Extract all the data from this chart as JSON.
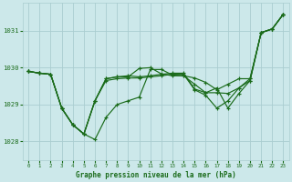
{
  "background_color": "#cce8ea",
  "grid_color": "#aacdd0",
  "line_color": "#1a6b1a",
  "marker_color": "#1a6b1a",
  "title": "Graphe pression niveau de la mer (hPa)",
  "ylim": [
    1027.5,
    1031.75
  ],
  "xlim": [
    -0.5,
    23.5
  ],
  "yticks": [
    1028,
    1029,
    1030,
    1031
  ],
  "xtick_labels": [
    "0",
    "1",
    "2",
    "3",
    "4",
    "5",
    "6",
    "7",
    "8",
    "9",
    "10",
    "11",
    "12",
    "13",
    "14",
    "15",
    "16",
    "17",
    "18",
    "19",
    "20",
    "21",
    "22",
    "23"
  ],
  "xtick_positions": [
    0,
    1,
    2,
    3,
    4,
    5,
    6,
    7,
    8,
    9,
    10,
    11,
    12,
    13,
    14,
    15,
    16,
    17,
    18,
    19,
    20,
    21,
    22,
    23
  ],
  "series": [
    [
      1029.9,
      1029.85,
      1029.82,
      1028.9,
      1028.45,
      1028.2,
      1028.05,
      1028.65,
      1029.0,
      1029.1,
      1029.2,
      1029.95,
      1029.95,
      1029.8,
      1029.78,
      1029.72,
      1029.6,
      1029.4,
      1029.55,
      1029.7,
      1029.7,
      1030.95,
      1031.05,
      1031.45
    ],
    [
      1029.9,
      1029.85,
      1029.82,
      1028.9,
      1028.45,
      1028.2,
      1029.1,
      1029.7,
      1029.75,
      1029.75,
      1029.98,
      1030.0,
      1029.83,
      1029.78,
      1029.78,
      1029.55,
      1029.32,
      1029.32,
      1029.3,
      1029.45,
      1029.7,
      1030.95,
      1031.05,
      1031.45
    ],
    [
      1029.9,
      1029.85,
      1029.82,
      1028.9,
      1028.45,
      1028.2,
      1029.1,
      1029.7,
      1029.75,
      1029.78,
      1029.75,
      1029.78,
      1029.82,
      1029.85,
      1029.85,
      1029.42,
      1029.32,
      1029.45,
      1028.9,
      1029.3,
      1029.65,
      1030.95,
      1031.05,
      1031.45
    ],
    [
      1029.9,
      1029.85,
      1029.82,
      1028.9,
      1028.45,
      1028.2,
      1029.1,
      1029.65,
      1029.7,
      1029.72,
      1029.72,
      1029.75,
      1029.78,
      1029.82,
      1029.82,
      1029.4,
      1029.25,
      1028.9,
      1029.1,
      1029.45,
      1029.65,
      1030.95,
      1031.05,
      1031.45
    ]
  ]
}
